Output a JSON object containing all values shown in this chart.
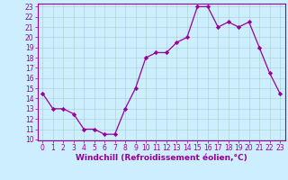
{
  "x": [
    0,
    1,
    2,
    3,
    4,
    5,
    6,
    7,
    8,
    9,
    10,
    11,
    12,
    13,
    14,
    15,
    16,
    17,
    18,
    19,
    20,
    21,
    22,
    23
  ],
  "y": [
    14.5,
    13.0,
    13.0,
    12.5,
    11.0,
    11.0,
    10.5,
    10.5,
    13.0,
    15.0,
    18.0,
    18.5,
    18.5,
    19.5,
    20.0,
    23.0,
    23.0,
    21.0,
    21.5,
    21.0,
    21.5,
    19.0,
    16.5,
    14.5
  ],
  "line_color": "#990099",
  "marker": "D",
  "markersize": 2.2,
  "linewidth": 0.9,
  "xlabel": "Windchill (Refroidissement éolien,°C)",
  "xlabel_fontsize": 6.5,
  "bg_color": "#cceeff",
  "grid_color": "#aacccc",
  "tick_color": "#990099",
  "label_color": "#990099",
  "ylim": [
    10,
    23
  ],
  "xlim": [
    -0.5,
    23.5
  ],
  "yticks": [
    10,
    11,
    12,
    13,
    14,
    15,
    16,
    17,
    18,
    19,
    20,
    21,
    22,
    23
  ],
  "xticks": [
    0,
    1,
    2,
    3,
    4,
    5,
    6,
    7,
    8,
    9,
    10,
    11,
    12,
    13,
    14,
    15,
    16,
    17,
    18,
    19,
    20,
    21,
    22,
    23
  ],
  "tick_fontsize": 5.5
}
